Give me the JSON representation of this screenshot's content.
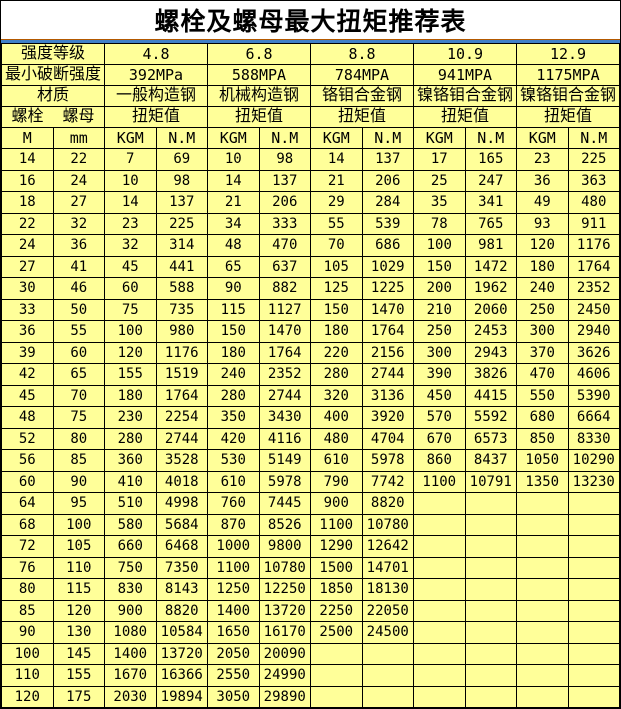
{
  "title": "螺栓及螺母最大扭矩推荐表",
  "header": {
    "strength_grade_label": "强度等级",
    "grades": [
      "4.8",
      "6.8",
      "8.8",
      "10.9",
      "12.9"
    ],
    "min_break_label": "最小破断强度",
    "strengths": [
      "392MPa",
      "588MPA",
      "784MPA",
      "941MPA",
      "1175MPA"
    ],
    "material_label": "材质",
    "materials": [
      "一般构造钢",
      "机械构造钢",
      "铬钼合金钢",
      "镍铬钼合金钢",
      "镍铬钼合金钢"
    ],
    "bolt_label": "螺栓",
    "nut_label": "螺母",
    "torque_label": "扭矩值",
    "unit_bolt": "M",
    "unit_nut": "mm",
    "unit_kgm": "KGM",
    "unit_nm": "N.M"
  },
  "chart_data": {
    "type": "table",
    "title": "螺栓及螺母最大扭矩推荐表",
    "columns": [
      "M",
      "mm",
      "4.8 KGM",
      "4.8 N.M",
      "6.8 KGM",
      "6.8 N.M",
      "8.8 KGM",
      "8.8 N.M",
      "10.9 KGM",
      "10.9 N.M",
      "12.9 KGM",
      "12.9 N.M"
    ],
    "rows": [
      [
        "14",
        "22",
        "7",
        "69",
        "10",
        "98",
        "14",
        "137",
        "17",
        "165",
        "23",
        "225"
      ],
      [
        "16",
        "24",
        "10",
        "98",
        "14",
        "137",
        "21",
        "206",
        "25",
        "247",
        "36",
        "363"
      ],
      [
        "18",
        "27",
        "14",
        "137",
        "21",
        "206",
        "29",
        "284",
        "35",
        "341",
        "49",
        "480"
      ],
      [
        "22",
        "32",
        "23",
        "225",
        "34",
        "333",
        "55",
        "539",
        "78",
        "765",
        "93",
        "911"
      ],
      [
        "24",
        "36",
        "32",
        "314",
        "48",
        "470",
        "70",
        "686",
        "100",
        "981",
        "120",
        "1176"
      ],
      [
        "27",
        "41",
        "45",
        "441",
        "65",
        "637",
        "105",
        "1029",
        "150",
        "1472",
        "180",
        "1764"
      ],
      [
        "30",
        "46",
        "60",
        "588",
        "90",
        "882",
        "125",
        "1225",
        "200",
        "1962",
        "240",
        "2352"
      ],
      [
        "33",
        "50",
        "75",
        "735",
        "115",
        "1127",
        "150",
        "1470",
        "210",
        "2060",
        "250",
        "2450"
      ],
      [
        "36",
        "55",
        "100",
        "980",
        "150",
        "1470",
        "180",
        "1764",
        "250",
        "2453",
        "300",
        "2940"
      ],
      [
        "39",
        "60",
        "120",
        "1176",
        "180",
        "1764",
        "220",
        "2156",
        "300",
        "2943",
        "370",
        "3626"
      ],
      [
        "42",
        "65",
        "155",
        "1519",
        "240",
        "2352",
        "280",
        "2744",
        "390",
        "3826",
        "470",
        "4606"
      ],
      [
        "45",
        "70",
        "180",
        "1764",
        "280",
        "2744",
        "320",
        "3136",
        "450",
        "4415",
        "550",
        "5390"
      ],
      [
        "48",
        "75",
        "230",
        "2254",
        "350",
        "3430",
        "400",
        "3920",
        "570",
        "5592",
        "680",
        "6664"
      ],
      [
        "52",
        "80",
        "280",
        "2744",
        "420",
        "4116",
        "480",
        "4704",
        "670",
        "6573",
        "850",
        "8330"
      ],
      [
        "56",
        "85",
        "360",
        "3528",
        "530",
        "5149",
        "610",
        "5978",
        "860",
        "8437",
        "1050",
        "10290"
      ],
      [
        "60",
        "90",
        "410",
        "4018",
        "610",
        "5978",
        "790",
        "7742",
        "1100",
        "10791",
        "1350",
        "13230"
      ],
      [
        "64",
        "95",
        "510",
        "4998",
        "760",
        "7445",
        "900",
        "8820",
        "",
        "",
        "",
        ""
      ],
      [
        "68",
        "100",
        "580",
        "5684",
        "870",
        "8526",
        "1100",
        "10780",
        "",
        "",
        "",
        ""
      ],
      [
        "72",
        "105",
        "660",
        "6468",
        "1000",
        "9800",
        "1290",
        "12642",
        "",
        "",
        "",
        ""
      ],
      [
        "76",
        "110",
        "750",
        "7350",
        "1100",
        "10780",
        "1500",
        "14701",
        "",
        "",
        "",
        ""
      ],
      [
        "80",
        "115",
        "830",
        "8143",
        "1250",
        "12250",
        "1850",
        "18130",
        "",
        "",
        "",
        ""
      ],
      [
        "85",
        "120",
        "900",
        "8820",
        "1400",
        "13720",
        "2250",
        "22050",
        "",
        "",
        "",
        ""
      ],
      [
        "90",
        "130",
        "1080",
        "10584",
        "1650",
        "16170",
        "2500",
        "24500",
        "",
        "",
        "",
        ""
      ],
      [
        "100",
        "145",
        "1400",
        "13720",
        "2050",
        "20090",
        "",
        "",
        "",
        "",
        "",
        ""
      ],
      [
        "110",
        "155",
        "1670",
        "16366",
        "2550",
        "24990",
        "",
        "",
        "",
        "",
        "",
        ""
      ],
      [
        "120",
        "175",
        "2030",
        "19894",
        "3050",
        "29890",
        "",
        "",
        "",
        "",
        "",
        ""
      ]
    ]
  },
  "colors": {
    "cell_bg": "#FFFF99",
    "title_bg": "#FFFFFF",
    "border": "#000000",
    "divider_blue": "#4080C8",
    "divider_orange": "#B35900",
    "text": "#000000"
  }
}
